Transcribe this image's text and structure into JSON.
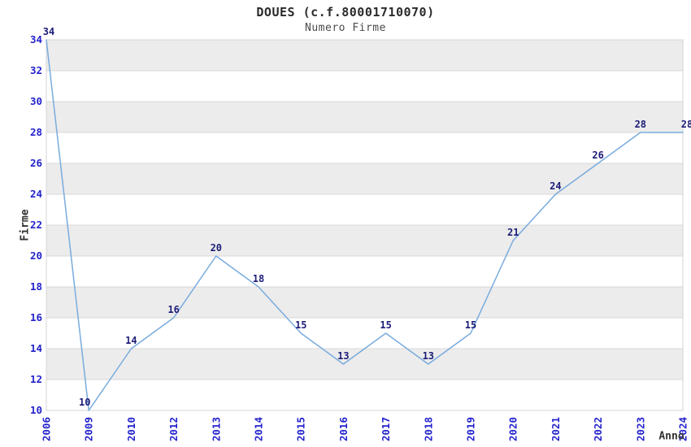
{
  "chart_data": {
    "type": "line",
    "title": "DOUES (c.f.80001710070)",
    "subtitle": "Numero Firme",
    "xlabel": "Anno",
    "ylabel": "Firme",
    "x": [
      "2006",
      "2009",
      "2010",
      "2012",
      "2013",
      "2014",
      "2015",
      "2016",
      "2017",
      "2018",
      "2019",
      "2020",
      "2021",
      "2022",
      "2023",
      "2024"
    ],
    "values": [
      34,
      10,
      14,
      16,
      20,
      18,
      15,
      13,
      15,
      13,
      15,
      21,
      24,
      26,
      28,
      28
    ],
    "point_labels": [
      "34",
      "10",
      "14",
      "16",
      "20",
      "18",
      "15",
      "13",
      "15",
      "13",
      "15",
      "21",
      "24",
      "26",
      "28",
      "28"
    ],
    "ylim": [
      10,
      34
    ],
    "ytick_step": 2,
    "yticks": [
      "10",
      "12",
      "14",
      "16",
      "18",
      "20",
      "22",
      "24",
      "26",
      "28",
      "30",
      "32",
      "34"
    ],
    "grid": "horizontal",
    "bands": "alternating",
    "legend_position": "none",
    "colors": {
      "line": "#79abde",
      "point_label": "#1c1c78",
      "tick_label": "#2323cc",
      "band_gray": "#ececec",
      "band_white": "#ffffff",
      "gridline": "#d8d8d8",
      "plot_border": "#d4d4d4",
      "title_text": "#2b2b2b"
    }
  }
}
